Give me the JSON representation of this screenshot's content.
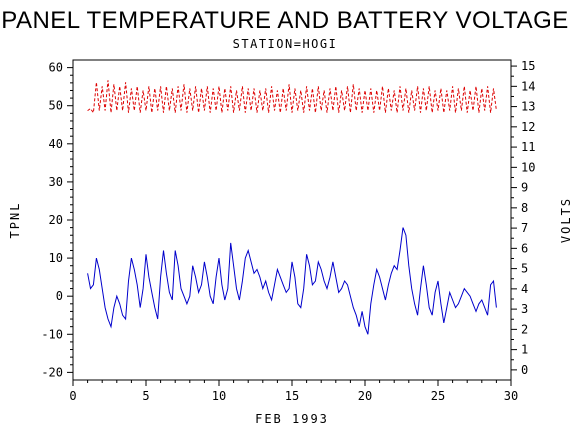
{
  "chart_data": {
    "type": "line",
    "title": "PANEL TEMPERATURE AND BATTERY VOLTAGE",
    "subtitle": "STATION=HOGI",
    "xlabel": "FEB 1993",
    "ylabel_left": "TPNL",
    "ylabel_right": "VOLTS",
    "xlim": [
      0,
      30
    ],
    "ylim_left": [
      -22,
      62
    ],
    "ylim_right": [
      -0.5,
      15.3
    ],
    "x_ticks": [
      0,
      5,
      10,
      15,
      20,
      25,
      30
    ],
    "y_left_ticks": [
      -20,
      -10,
      0,
      10,
      20,
      30,
      40,
      50,
      60
    ],
    "y_right_ticks": [
      0,
      1,
      2,
      3,
      4,
      5,
      6,
      7,
      8,
      9,
      10,
      11,
      12,
      13,
      14,
      15
    ],
    "grid": false,
    "series": [
      {
        "axis": "left",
        "color": "#0000cc",
        "style": "solid",
        "values_xy": [
          [
            1.0,
            6
          ],
          [
            1.2,
            2
          ],
          [
            1.4,
            3
          ],
          [
            1.6,
            10
          ],
          [
            1.8,
            7
          ],
          [
            2.0,
            2
          ],
          [
            2.2,
            -3
          ],
          [
            2.4,
            -6
          ],
          [
            2.6,
            -8
          ],
          [
            2.8,
            -3
          ],
          [
            3.0,
            0
          ],
          [
            3.2,
            -2
          ],
          [
            3.4,
            -5
          ],
          [
            3.6,
            -6
          ],
          [
            3.8,
            4
          ],
          [
            4.0,
            10
          ],
          [
            4.2,
            7
          ],
          [
            4.4,
            3
          ],
          [
            4.6,
            -3
          ],
          [
            4.8,
            2
          ],
          [
            5.0,
            11
          ],
          [
            5.2,
            5
          ],
          [
            5.4,
            1
          ],
          [
            5.6,
            -3
          ],
          [
            5.8,
            -6
          ],
          [
            6.0,
            5
          ],
          [
            6.2,
            12
          ],
          [
            6.4,
            6
          ],
          [
            6.6,
            1
          ],
          [
            6.8,
            -1
          ],
          [
            7.0,
            12
          ],
          [
            7.2,
            8
          ],
          [
            7.4,
            2
          ],
          [
            7.6,
            0
          ],
          [
            7.8,
            -2
          ],
          [
            8.0,
            0
          ],
          [
            8.2,
            8
          ],
          [
            8.4,
            5
          ],
          [
            8.6,
            1
          ],
          [
            8.8,
            3
          ],
          [
            9.0,
            9
          ],
          [
            9.2,
            5
          ],
          [
            9.4,
            0
          ],
          [
            9.6,
            -2
          ],
          [
            9.8,
            5
          ],
          [
            10.0,
            10
          ],
          [
            10.2,
            3
          ],
          [
            10.4,
            -1
          ],
          [
            10.6,
            2
          ],
          [
            10.8,
            14
          ],
          [
            11.0,
            8
          ],
          [
            11.2,
            2
          ],
          [
            11.4,
            -1
          ],
          [
            11.6,
            4
          ],
          [
            11.8,
            10
          ],
          [
            12.0,
            12
          ],
          [
            12.2,
            9
          ],
          [
            12.4,
            6
          ],
          [
            12.6,
            7
          ],
          [
            12.8,
            5
          ],
          [
            13.0,
            2
          ],
          [
            13.2,
            4
          ],
          [
            13.4,
            1
          ],
          [
            13.6,
            -1
          ],
          [
            13.8,
            3
          ],
          [
            14.0,
            7
          ],
          [
            14.2,
            5
          ],
          [
            14.4,
            3
          ],
          [
            14.6,
            1
          ],
          [
            14.8,
            2
          ],
          [
            15.0,
            9
          ],
          [
            15.2,
            5
          ],
          [
            15.4,
            -2
          ],
          [
            15.6,
            -3
          ],
          [
            15.8,
            2
          ],
          [
            16.0,
            11
          ],
          [
            16.2,
            8
          ],
          [
            16.4,
            3
          ],
          [
            16.6,
            4
          ],
          [
            16.8,
            9
          ],
          [
            17.0,
            7
          ],
          [
            17.2,
            4
          ],
          [
            17.4,
            2
          ],
          [
            17.6,
            5
          ],
          [
            17.8,
            9
          ],
          [
            18.0,
            5
          ],
          [
            18.2,
            1
          ],
          [
            18.4,
            2
          ],
          [
            18.6,
            4
          ],
          [
            18.8,
            3
          ],
          [
            19.0,
            0
          ],
          [
            19.2,
            -3
          ],
          [
            19.4,
            -5
          ],
          [
            19.6,
            -8
          ],
          [
            19.8,
            -4
          ],
          [
            20.0,
            -8
          ],
          [
            20.2,
            -10
          ],
          [
            20.4,
            -2
          ],
          [
            20.6,
            3
          ],
          [
            20.8,
            7
          ],
          [
            21.0,
            5
          ],
          [
            21.2,
            2
          ],
          [
            21.4,
            -1
          ],
          [
            21.6,
            3
          ],
          [
            21.8,
            6
          ],
          [
            22.0,
            8
          ],
          [
            22.2,
            7
          ],
          [
            22.4,
            12
          ],
          [
            22.6,
            18
          ],
          [
            22.8,
            16
          ],
          [
            23.0,
            8
          ],
          [
            23.2,
            2
          ],
          [
            23.4,
            -2
          ],
          [
            23.6,
            -5
          ],
          [
            23.8,
            2
          ],
          [
            24.0,
            8
          ],
          [
            24.2,
            3
          ],
          [
            24.4,
            -3
          ],
          [
            24.6,
            -5
          ],
          [
            24.8,
            1
          ],
          [
            25.0,
            4
          ],
          [
            25.2,
            -2
          ],
          [
            25.4,
            -7
          ],
          [
            25.6,
            -3
          ],
          [
            25.8,
            1
          ],
          [
            26.0,
            -1
          ],
          [
            26.2,
            -3
          ],
          [
            26.4,
            -2
          ],
          [
            26.6,
            0
          ],
          [
            26.8,
            2
          ],
          [
            27.0,
            1
          ],
          [
            27.2,
            0
          ],
          [
            27.4,
            -2
          ],
          [
            27.6,
            -4
          ],
          [
            27.8,
            -2
          ],
          [
            28.0,
            -1
          ],
          [
            28.2,
            -3
          ],
          [
            28.4,
            -5
          ],
          [
            28.6,
            3
          ],
          [
            28.8,
            4
          ],
          [
            29.0,
            -3
          ]
        ]
      },
      {
        "axis": "right",
        "color": "#dd0000",
        "style": "dashed",
        "values_xy": [
          [
            1.0,
            12.8
          ],
          [
            1.2,
            12.9
          ],
          [
            1.4,
            12.7
          ],
          [
            1.6,
            14.2
          ],
          [
            1.8,
            12.8
          ],
          [
            2.0,
            14.0
          ],
          [
            2.2,
            12.8
          ],
          [
            2.4,
            14.3
          ],
          [
            2.6,
            12.7
          ],
          [
            2.8,
            14.1
          ],
          [
            3.0,
            12.8
          ],
          [
            3.2,
            14.0
          ],
          [
            3.4,
            12.8
          ],
          [
            3.6,
            14.2
          ],
          [
            3.8,
            12.7
          ],
          [
            4.0,
            13.9
          ],
          [
            4.2,
            12.8
          ],
          [
            4.4,
            14.0
          ],
          [
            4.6,
            12.7
          ],
          [
            4.8,
            13.8
          ],
          [
            5.0,
            12.8
          ],
          [
            5.2,
            14.0
          ],
          [
            5.4,
            12.7
          ],
          [
            5.6,
            13.9
          ],
          [
            5.8,
            12.8
          ],
          [
            6.0,
            14.0
          ],
          [
            6.2,
            12.7
          ],
          [
            6.4,
            14.0
          ],
          [
            6.6,
            12.8
          ],
          [
            6.8,
            13.9
          ],
          [
            7.0,
            12.7
          ],
          [
            7.2,
            14.0
          ],
          [
            7.4,
            12.8
          ],
          [
            7.6,
            14.1
          ],
          [
            7.8,
            12.7
          ],
          [
            8.0,
            13.9
          ],
          [
            8.2,
            12.8
          ],
          [
            8.4,
            14.0
          ],
          [
            8.6,
            12.7
          ],
          [
            8.8,
            13.9
          ],
          [
            9.0,
            12.8
          ],
          [
            9.2,
            14.0
          ],
          [
            9.4,
            12.7
          ],
          [
            9.6,
            13.9
          ],
          [
            9.8,
            12.8
          ],
          [
            10.0,
            14.0
          ],
          [
            10.2,
            12.7
          ],
          [
            10.4,
            13.9
          ],
          [
            10.6,
            12.8
          ],
          [
            10.8,
            14.0
          ],
          [
            11.0,
            12.7
          ],
          [
            11.2,
            13.8
          ],
          [
            11.4,
            12.8
          ],
          [
            11.6,
            14.0
          ],
          [
            11.8,
            12.7
          ],
          [
            12.0,
            13.9
          ],
          [
            12.2,
            12.8
          ],
          [
            12.4,
            13.9
          ],
          [
            12.6,
            12.7
          ],
          [
            12.8,
            13.8
          ],
          [
            13.0,
            12.8
          ],
          [
            13.2,
            13.9
          ],
          [
            13.4,
            12.7
          ],
          [
            13.6,
            14.0
          ],
          [
            13.8,
            12.8
          ],
          [
            14.0,
            13.8
          ],
          [
            14.2,
            12.7
          ],
          [
            14.4,
            13.9
          ],
          [
            14.6,
            12.8
          ],
          [
            14.8,
            14.1
          ],
          [
            15.0,
            12.7
          ],
          [
            15.2,
            13.9
          ],
          [
            15.4,
            12.8
          ],
          [
            15.6,
            13.8
          ],
          [
            15.8,
            12.7
          ],
          [
            16.0,
            14.0
          ],
          [
            16.2,
            12.8
          ],
          [
            16.4,
            13.9
          ],
          [
            16.6,
            12.7
          ],
          [
            16.8,
            14.0
          ],
          [
            17.0,
            12.8
          ],
          [
            17.2,
            13.8
          ],
          [
            17.4,
            12.7
          ],
          [
            17.6,
            13.9
          ],
          [
            17.8,
            12.8
          ],
          [
            18.0,
            14.0
          ],
          [
            18.2,
            12.7
          ],
          [
            18.4,
            13.8
          ],
          [
            18.6,
            12.8
          ],
          [
            18.8,
            14.0
          ],
          [
            19.0,
            12.7
          ],
          [
            19.2,
            14.1
          ],
          [
            19.4,
            12.8
          ],
          [
            19.6,
            13.9
          ],
          [
            19.8,
            12.7
          ],
          [
            20.0,
            13.8
          ],
          [
            20.2,
            12.8
          ],
          [
            20.4,
            13.9
          ],
          [
            20.6,
            12.7
          ],
          [
            20.8,
            13.8
          ],
          [
            21.0,
            12.8
          ],
          [
            21.2,
            14.0
          ],
          [
            21.4,
            12.7
          ],
          [
            21.6,
            13.9
          ],
          [
            21.8,
            12.8
          ],
          [
            22.0,
            13.8
          ],
          [
            22.2,
            12.7
          ],
          [
            22.4,
            14.0
          ],
          [
            22.6,
            12.8
          ],
          [
            22.8,
            13.9
          ],
          [
            23.0,
            12.7
          ],
          [
            23.2,
            13.8
          ],
          [
            23.4,
            12.8
          ],
          [
            23.6,
            14.0
          ],
          [
            23.8,
            12.7
          ],
          [
            24.0,
            13.9
          ],
          [
            24.2,
            12.8
          ],
          [
            24.4,
            14.0
          ],
          [
            24.6,
            12.7
          ],
          [
            24.8,
            13.8
          ],
          [
            25.0,
            12.8
          ],
          [
            25.2,
            13.9
          ],
          [
            25.4,
            12.7
          ],
          [
            25.6,
            13.8
          ],
          [
            25.8,
            12.8
          ],
          [
            26.0,
            14.0
          ],
          [
            26.2,
            12.7
          ],
          [
            26.4,
            13.9
          ],
          [
            26.6,
            12.8
          ],
          [
            26.8,
            14.0
          ],
          [
            27.0,
            12.7
          ],
          [
            27.2,
            13.8
          ],
          [
            27.4,
            12.8
          ],
          [
            27.6,
            14.0
          ],
          [
            27.8,
            12.7
          ],
          [
            28.0,
            13.9
          ],
          [
            28.2,
            12.8
          ],
          [
            28.4,
            14.0
          ],
          [
            28.6,
            12.7
          ],
          [
            28.8,
            13.9
          ],
          [
            29.0,
            12.8
          ]
        ]
      }
    ]
  }
}
